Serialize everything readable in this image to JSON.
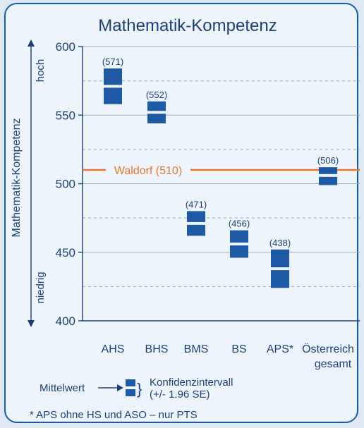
{
  "chart_data": {
    "type": "range",
    "title": "Mathematik-Kompetenz",
    "ylabel": "Mathematik-Kompetenz",
    "ylabel_high": "hoch",
    "ylabel_low": "niedrig",
    "ylim": [
      400,
      600
    ],
    "yticks": [
      "400",
      "450",
      "500",
      "550",
      "600"
    ],
    "grid": true,
    "categories": [
      {
        "name": "AHS",
        "mean": 571,
        "mean_label": "(571)",
        "ci_low": 558,
        "ci_high": 584
      },
      {
        "name": "BHS",
        "mean": 552,
        "mean_label": "(552)",
        "ci_low": 544,
        "ci_high": 560
      },
      {
        "name": "BMS",
        "mean": 471,
        "mean_label": "(471)",
        "ci_low": 462,
        "ci_high": 480
      },
      {
        "name": "BS",
        "mean": 456,
        "mean_label": "(456)",
        "ci_low": 446,
        "ci_high": 466
      },
      {
        "name": "APS*",
        "mean": 438,
        "mean_label": "(438)",
        "ci_low": 424,
        "ci_high": 452
      },
      {
        "name": "Österreich",
        "name2": "gesamt",
        "mean": 506,
        "mean_label": "(506)",
        "ci_low": 499,
        "ci_high": 512
      }
    ],
    "reference_line": {
      "label": "Waldorf (510)",
      "value": 510,
      "color": "#e8772e"
    },
    "bar_color": "#1d5aa6"
  },
  "legend": {
    "mean_label": "Mittelwert",
    "ci_label_line1": "Konfidenzintervall",
    "ci_label_line2": "(+/- 1.96 SE)"
  },
  "footnote": "* APS ohne HS und ASO – nur PTS"
}
